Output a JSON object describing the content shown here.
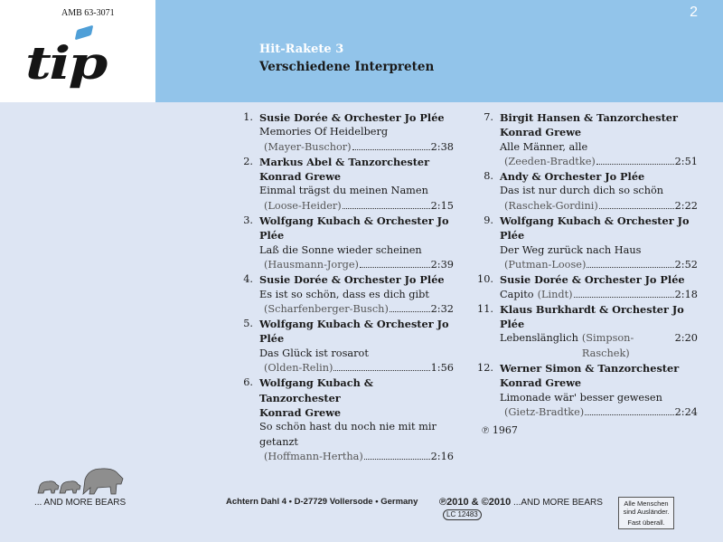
{
  "header": {
    "catalog_no": "AMB 63-3071",
    "logo_text": "tip",
    "page_number": "2",
    "album_title": "Hit-Rakete 3",
    "album_subtitle": "Verschiedene Interpreten",
    "band_color": "#92c4ea"
  },
  "tracks_left": [
    {
      "num": "1.",
      "artist": [
        "Susie Dorée & Orchester Jo Plée"
      ],
      "title": "Memories Of Heidelberg",
      "composer": "(Mayer-Buschor)",
      "duration": "2:38"
    },
    {
      "num": "2.",
      "artist": [
        "Markus Abel & Tanzorchester Konrad Grewe"
      ],
      "title": "Einmal trägst du meinen Namen",
      "composer": "(Loose-Heider)",
      "duration": "2:15"
    },
    {
      "num": "3.",
      "artist": [
        "Wolfgang Kubach & Orchester Jo Plée"
      ],
      "title": "Laß die Sonne wieder scheinen",
      "composer": "(Hausmann-Jorge)",
      "duration": "2:39"
    },
    {
      "num": "4.",
      "artist": [
        "Susie Dorée & Orchester Jo Plée"
      ],
      "title": "Es ist so schön, dass es dich gibt",
      "composer": "(Scharfenberger-Busch)",
      "duration": "2:32"
    },
    {
      "num": "5.",
      "artist": [
        "Wolfgang Kubach & Orchester Jo Plée"
      ],
      "title": "Das Glück ist rosarot",
      "composer": "(Olden-Relin)",
      "duration": "1:56"
    },
    {
      "num": "6.",
      "artist": [
        "Wolfgang Kubach & Tanzorchester",
        "Konrad Grewe"
      ],
      "title": "So schön hast du noch nie mit mir getanzt",
      "composer": "(Hoffmann-Hertha)",
      "duration": "2:16"
    }
  ],
  "tracks_right": [
    {
      "num": "7.",
      "artist": [
        "Birgit Hansen & Tanzorchester",
        "Konrad Grewe"
      ],
      "title": "Alle Männer, alle",
      "composer": "(Zeeden-Bradtke)",
      "duration": "2:51"
    },
    {
      "num": "8.",
      "artist": [
        "Andy & Orchester Jo Plée"
      ],
      "title": "Das ist nur durch dich so schön",
      "composer": "(Raschek-Gordini)",
      "duration": "2:22"
    },
    {
      "num": "9.",
      "artist": [
        "Wolfgang Kubach & Orchester Jo Plée"
      ],
      "title": "Der Weg zurück nach Haus",
      "composer": "(Putman-Loose)",
      "duration": "2:52"
    },
    {
      "num": "10.",
      "artist": [
        "Susie Dorée & Orchester Jo Plée"
      ],
      "title": "Capito",
      "composer": "(Lindt)",
      "duration": "2:18",
      "inline": true
    },
    {
      "num": "11.",
      "artist": [
        "Klaus Burkhardt & Orchester Jo Plée"
      ],
      "title": "Lebenslänglich",
      "composer": "(Simpson-Raschek)",
      "duration": "2:20",
      "inline": true
    },
    {
      "num": "12.",
      "artist": [
        "Werner Simon & Tanzorchester",
        "Konrad Grewe"
      ],
      "title": "Limonade wär' besser gewesen",
      "composer": "(Gietz-Bradtke)",
      "duration": "2:24"
    }
  ],
  "phono_year": "℗ 1967",
  "footer": {
    "bears_logo_text": "... AND MORE BEARS",
    "address": "Achtern Dahl 4 • D-27729 Vollersode • Germany",
    "copyright": "℗2010 & ©2010",
    "copyright_label": "...AND MORE BEARS",
    "lc_mark": "LC",
    "lc_code": "12483",
    "slogan_line1": "Alle Menschen",
    "slogan_line2": "sind Ausländer.",
    "slogan_line3": "Fast überall."
  }
}
